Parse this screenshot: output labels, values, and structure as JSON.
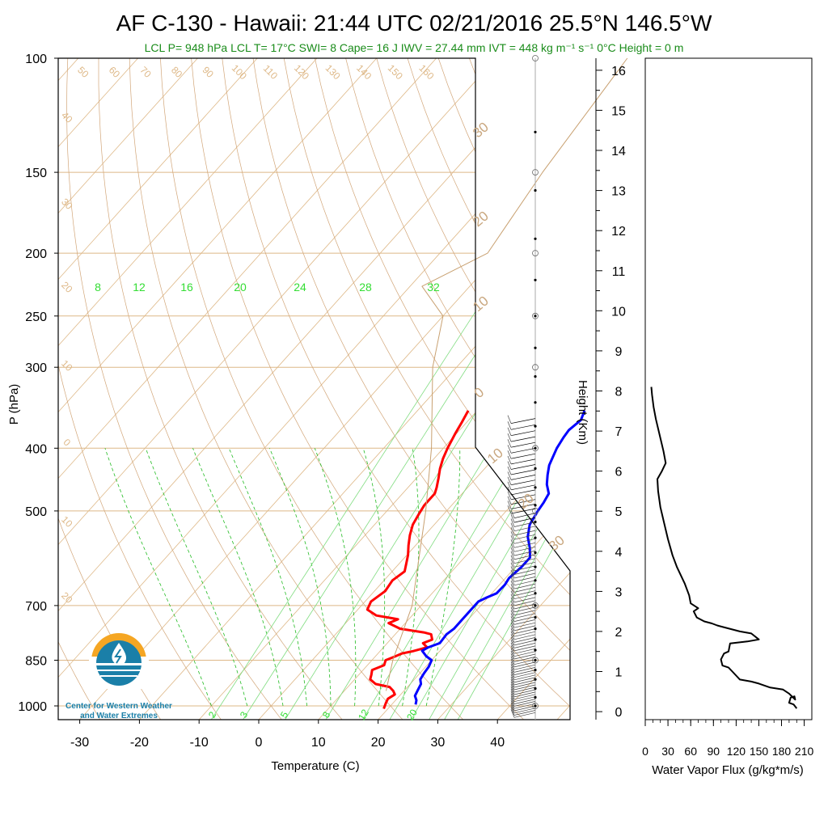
{
  "title": {
    "main": "AF C-130 - Hawaii: 21:44 UTC 02/21/2016  25.5°N 146.5°W",
    "subtitle": "LCL P= 948 hPa  LCL T= 17°C  SWI= 8  Cape= 16 J  IWV = 27.44 mm  IVT = 448 kg m⁻¹ s⁻¹  0°C Height = 0 m"
  },
  "logo": {
    "line1": "Center for Western Weather",
    "line2": "and Water Extremes"
  },
  "colors": {
    "temperature": "#ff0000",
    "dewpoint": "#0000ff",
    "isotherm_isobar": "#deb887",
    "dry_adiabat": "#d2a679",
    "mixing_ratio": "#00dd00",
    "parcel": "#c8a070",
    "flux": "#000000",
    "logo_orange": "#f5a623",
    "logo_blue": "#1a7fa8"
  },
  "chart_data": [
    {
      "type": "line",
      "name": "skew-t",
      "xlabel": "Temperature (C)",
      "ylabel": "P (hPa)",
      "y2label": "Height (Km)",
      "x_ticks": [
        "-30",
        "-20",
        "-10",
        "0",
        "10",
        "20",
        "30",
        "40"
      ],
      "pressure_ticks": [
        "100",
        "150",
        "200",
        "250",
        "300",
        "400",
        "500",
        "700",
        "850",
        "1000"
      ],
      "height_ticks": [
        "0",
        "1",
        "2",
        "3",
        "4",
        "5",
        "6",
        "7",
        "8",
        "9",
        "10",
        "11",
        "12",
        "13",
        "14",
        "15",
        "16"
      ],
      "log_scale_y": true,
      "xlim": [
        -34,
        52
      ],
      "ylim": [
        1050,
        100
      ],
      "isotherm_labels": [
        "50",
        "60",
        "70",
        "80",
        "90",
        "100",
        "110",
        "120",
        "130",
        "140",
        "150",
        "160"
      ],
      "left_labels": [
        "40",
        "30",
        "20",
        "10",
        "0",
        "10",
        "20"
      ],
      "right_labels": [
        "30",
        "20",
        "10",
        "0",
        "10",
        "20",
        "30"
      ],
      "mixing_ratio_top_labels": [
        "8",
        "12",
        "16",
        "20",
        "24",
        "28",
        "32"
      ],
      "mixing_ratio_bottom_labels": [
        "2",
        "3",
        "5",
        "8",
        "12",
        "20"
      ],
      "series": [
        {
          "name": "",
          "key": "temperature",
          "points": [
            [
              -11.5,
              350
            ],
            [
              -10.8,
              365
            ],
            [
              -10.2,
              380
            ],
            [
              -9.3,
              400
            ],
            [
              -8.5,
              415
            ],
            [
              -7.5,
              430
            ],
            [
              -6.3,
              445
            ],
            [
              -5.2,
              460
            ],
            [
              -4.6,
              470
            ],
            [
              -4.6,
              490
            ],
            [
              -4.2,
              505
            ],
            [
              -3.6,
              525
            ],
            [
              -2.5,
              545
            ],
            [
              -1.2,
              565
            ],
            [
              0.2,
              585
            ],
            [
              1.3,
              605
            ],
            [
              2.1,
              620
            ],
            [
              1.4,
              640
            ],
            [
              1.8,
              665
            ],
            [
              1.0,
              690
            ],
            [
              1.6,
              710
            ],
            [
              4.0,
              725
            ],
            [
              7.0,
              732
            ],
            [
              8.2,
              735
            ],
            [
              7.2,
              745
            ],
            [
              10.0,
              760
            ],
            [
              14.5,
              770
            ],
            [
              16.0,
              775
            ],
            [
              17.0,
              790
            ],
            [
              16.0,
              800
            ],
            [
              17.3,
              812
            ],
            [
              15.5,
              823
            ],
            [
              14.0,
              830
            ],
            [
              13.2,
              840
            ],
            [
              12.3,
              850
            ],
            [
              12.8,
              865
            ],
            [
              11.5,
              880
            ],
            [
              12.1,
              895
            ],
            [
              12.6,
              910
            ],
            [
              14.2,
              925
            ],
            [
              17.0,
              935
            ],
            [
              18.2,
              948
            ],
            [
              19.0,
              960
            ],
            [
              18.5,
              975
            ],
            [
              18.8,
              990
            ],
            [
              19.3,
              1010
            ]
          ],
          "width": 3
        },
        {
          "name": "",
          "key": "dewpoint",
          "points": [
            [
              8.0,
              350
            ],
            [
              8.8,
              362
            ],
            [
              8.3,
              375
            ],
            [
              8.5,
              385
            ],
            [
              9.0,
              400
            ],
            [
              10.3,
              425
            ],
            [
              11.5,
              440
            ],
            [
              12.8,
              455
            ],
            [
              14.5,
              470
            ],
            [
              15.0,
              485
            ],
            [
              15.3,
              500
            ],
            [
              16.0,
              525
            ],
            [
              17.5,
              548
            ],
            [
              19.5,
              570
            ],
            [
              21.0,
              590
            ],
            [
              21.0,
              610
            ],
            [
              20.6,
              635
            ],
            [
              20.9,
              650
            ],
            [
              20.8,
              670
            ],
            [
              19.8,
              680
            ],
            [
              19.0,
              690
            ],
            [
              19.0,
              705
            ],
            [
              19.0,
              730
            ],
            [
              19.0,
              760
            ],
            [
              18.6,
              775
            ],
            [
              18.8,
              800
            ],
            [
              17.5,
              812
            ],
            [
              17.0,
              822
            ],
            [
              18.5,
              838
            ],
            [
              20.0,
              850
            ],
            [
              20.5,
              870
            ],
            [
              20.7,
              890
            ],
            [
              21.0,
              910
            ],
            [
              21.8,
              925
            ],
            [
              22.2,
              945
            ],
            [
              22.6,
              965
            ],
            [
              23.5,
              980
            ],
            [
              24.0,
              995
            ]
          ],
          "width": 3
        },
        {
          "name": "",
          "key": "parcel",
          "points": [
            [
              17,
              948
            ],
            [
              13.5,
              850
            ],
            [
              8.5,
              700
            ],
            [
              3.0,
              600
            ],
            [
              -3.5,
              500
            ],
            [
              -12,
              400
            ],
            [
              -24,
              300
            ],
            [
              -30,
              250
            ],
            [
              -38,
              225
            ],
            [
              -32,
              200
            ],
            [
              -35,
              150
            ],
            [
              -38,
              100
            ]
          ],
          "width": 1
        }
      ]
    },
    {
      "type": "line",
      "name": "water-vapor-flux",
      "xlabel": "Water Vapor Flux (g/kg*m/s)",
      "x_ticks": [
        "0",
        "30",
        "60",
        "90",
        "120",
        "150",
        "180",
        "210"
      ],
      "xlim": [
        0,
        220
      ],
      "ylim": [
        -0.2,
        16.3
      ],
      "series": [
        {
          "name": "",
          "points": [
            [
              200,
              0.08
            ],
            [
              196,
              0.18
            ],
            [
              190,
              0.22
            ],
            [
              192,
              0.35
            ],
            [
              197,
              0.38
            ],
            [
              198,
              0.3
            ],
            [
              190,
              0.45
            ],
            [
              182,
              0.55
            ],
            [
              165,
              0.6
            ],
            [
              150,
              0.7
            ],
            [
              140,
              0.75
            ],
            [
              125,
              0.8
            ],
            [
              120,
              0.9
            ],
            [
              115,
              1.0
            ],
            [
              110,
              1.1
            ],
            [
              102,
              1.15
            ],
            [
              100,
              1.3
            ],
            [
              104,
              1.45
            ],
            [
              110,
              1.5
            ],
            [
              112,
              1.7
            ],
            [
              135,
              1.75
            ],
            [
              150,
              1.8
            ],
            [
              140,
              1.95
            ],
            [
              125,
              2.0
            ],
            [
              105,
              2.1
            ],
            [
              95,
              2.15
            ],
            [
              88,
              2.2
            ],
            [
              78,
              2.25
            ],
            [
              68,
              2.35
            ],
            [
              64,
              2.5
            ],
            [
              70,
              2.58
            ],
            [
              60,
              2.7
            ],
            [
              58,
              2.9
            ],
            [
              52,
              3.2
            ],
            [
              42,
              3.6
            ],
            [
              36,
              3.9
            ],
            [
              30,
              4.3
            ],
            [
              25,
              4.7
            ],
            [
              20,
              5.1
            ],
            [
              17,
              5.5
            ],
            [
              16,
              5.8
            ],
            [
              22,
              6.0
            ],
            [
              27,
              6.2
            ],
            [
              24,
              6.5
            ],
            [
              19,
              6.9
            ],
            [
              14,
              7.3
            ],
            [
              11,
              7.6
            ],
            [
              9,
              7.9
            ],
            [
              8,
              8.1
            ]
          ],
          "width": 2
        }
      ]
    }
  ]
}
